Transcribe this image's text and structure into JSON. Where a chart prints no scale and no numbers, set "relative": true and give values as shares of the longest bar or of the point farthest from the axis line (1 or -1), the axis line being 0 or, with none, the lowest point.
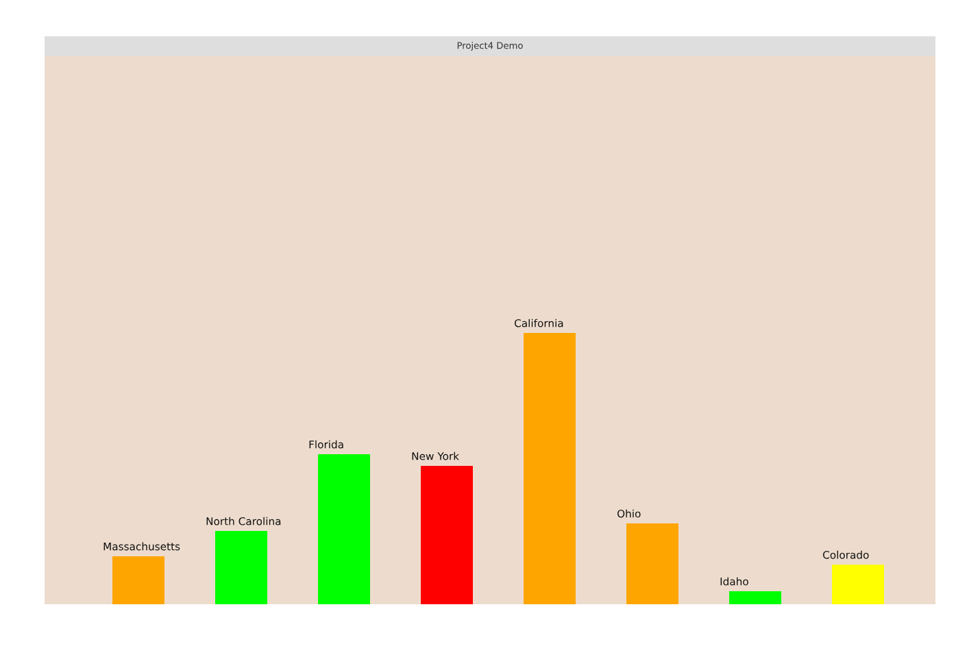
{
  "chart_data": {
    "type": "bar",
    "title": "Project4 Demo",
    "relative": true,
    "categories": [
      "Massachusetts",
      "North Carolina",
      "Florida",
      "New York",
      "California",
      "Ohio",
      "Idaho",
      "Colorado"
    ],
    "values": [
      0.177,
      0.27,
      0.553,
      0.51,
      1,
      0.298,
      0.048,
      0.146
    ],
    "colors": [
      "#ffa500",
      "#00ff00",
      "#00ff00",
      "#ff0000",
      "#ffa500",
      "#ffa500",
      "#00ff00",
      "#ffff00"
    ]
  }
}
